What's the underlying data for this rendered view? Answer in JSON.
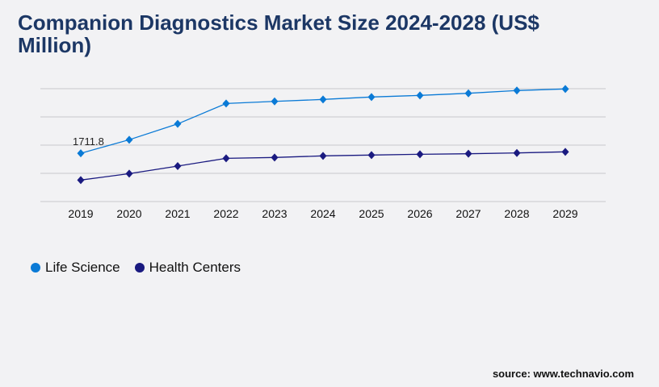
{
  "title": "Companion Diagnostics Market Size 2024-2028 (US$ Million)",
  "source": "source: www.technavio.com",
  "chart_data": {
    "type": "line",
    "title": "Companion Diagnostics Market Size 2024-2028 (US$ Million)",
    "xlabel": "",
    "ylabel": "",
    "categories": [
      "2019",
      "2020",
      "2021",
      "2022",
      "2023",
      "2024",
      "2025",
      "2026",
      "2027",
      "2028",
      "2029"
    ],
    "ylim": [
      0,
      4000
    ],
    "grid": true,
    "legend": "bottom-left",
    "series": [
      {
        "name": "Life Science",
        "color": "#0a7ad6",
        "values": [
          1711.8,
          2191,
          2752,
          3476,
          3551,
          3619,
          3705,
          3762,
          3837,
          3934,
          3991
        ]
      },
      {
        "name": "Health Centers",
        "color": "#1a1a80",
        "values": [
          762,
          990,
          1257,
          1533,
          1562,
          1619,
          1648,
          1676,
          1695,
          1723,
          1762
        ]
      }
    ],
    "data_labels": [
      {
        "series": "Life Science",
        "category": "2019",
        "text": "1711.8"
      }
    ]
  }
}
